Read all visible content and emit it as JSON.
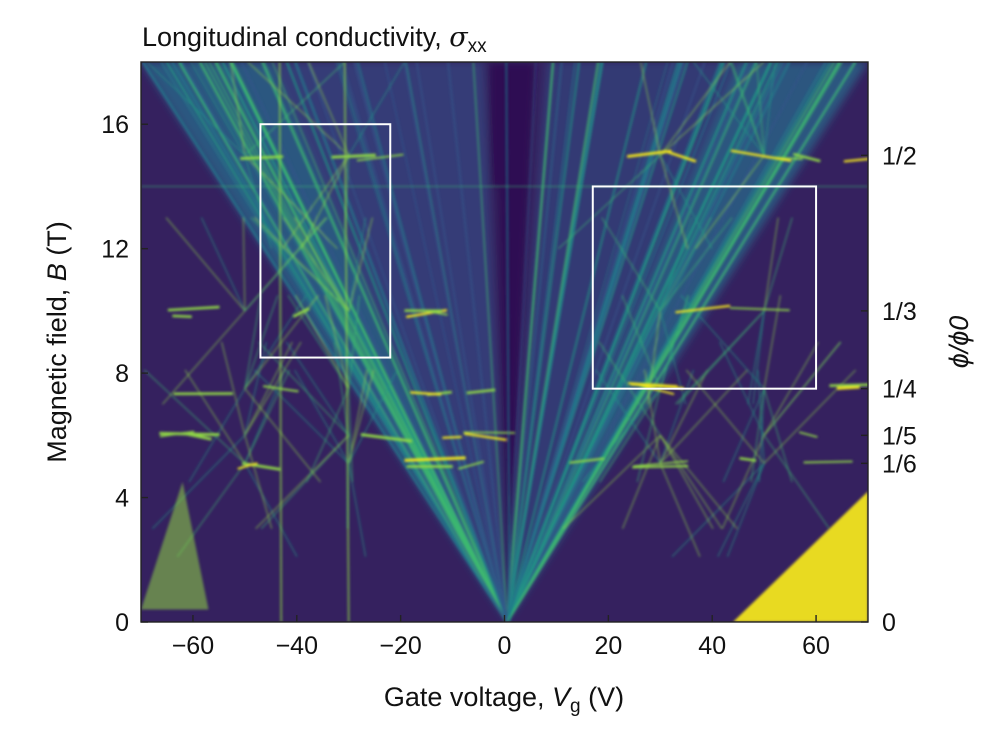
{
  "chart_data": {
    "type": "heatmap",
    "title": "Longitudinal conductivity, σxx",
    "title_text": "Longitudinal conductivity, ",
    "title_symbol": "σ",
    "title_subscript": "xx",
    "xlabel_text": "Gate voltage, ",
    "xlabel_symbol": "V",
    "xlabel_subscript": "g",
    "xlabel_unit": " (V)",
    "ylabel_text": "Magnetic field, ",
    "ylabel_symbol": "B",
    "ylabel_unit": " (T)",
    "y2label": "ϕ/ϕ0",
    "xlim": [
      -70,
      70
    ],
    "ylim": [
      0,
      18
    ],
    "x_ticks": [
      {
        "value": -60,
        "label": "−60"
      },
      {
        "value": -40,
        "label": "−40"
      },
      {
        "value": -20,
        "label": "−20"
      },
      {
        "value": 0,
        "label": "0"
      },
      {
        "value": 20,
        "label": "20"
      },
      {
        "value": 40,
        "label": "40"
      },
      {
        "value": 60,
        "label": "60"
      }
    ],
    "y_ticks": [
      {
        "value": 0,
        "label": "0"
      },
      {
        "value": 4,
        "label": "4"
      },
      {
        "value": 8,
        "label": "8"
      },
      {
        "value": 12,
        "label": "12"
      },
      {
        "value": 16,
        "label": "16"
      }
    ],
    "flux_ticks": [
      {
        "B": 0,
        "label": "0"
      },
      {
        "B": 5.1,
        "label": "1/6"
      },
      {
        "B": 6.0,
        "label": "1/5"
      },
      {
        "B": 7.5,
        "label": "1/4"
      },
      {
        "B": 10.0,
        "label": "1/3"
      },
      {
        "B": 15.0,
        "label": "1/2"
      }
    ],
    "highlight_boxes": [
      {
        "x": [
          -47,
          -22
        ],
        "y": [
          8.5,
          16.0
        ]
      },
      {
        "x": [
          17,
          60
        ],
        "y": [
          7.5,
          14.0
        ]
      }
    ],
    "colormap": [
      "#2d0d52",
      "#3b2a7a",
      "#33548a",
      "#23788b",
      "#1f9a85",
      "#3dbb6f",
      "#8fd646",
      "#f2e51f"
    ],
    "grid": false,
    "legend": "none"
  }
}
